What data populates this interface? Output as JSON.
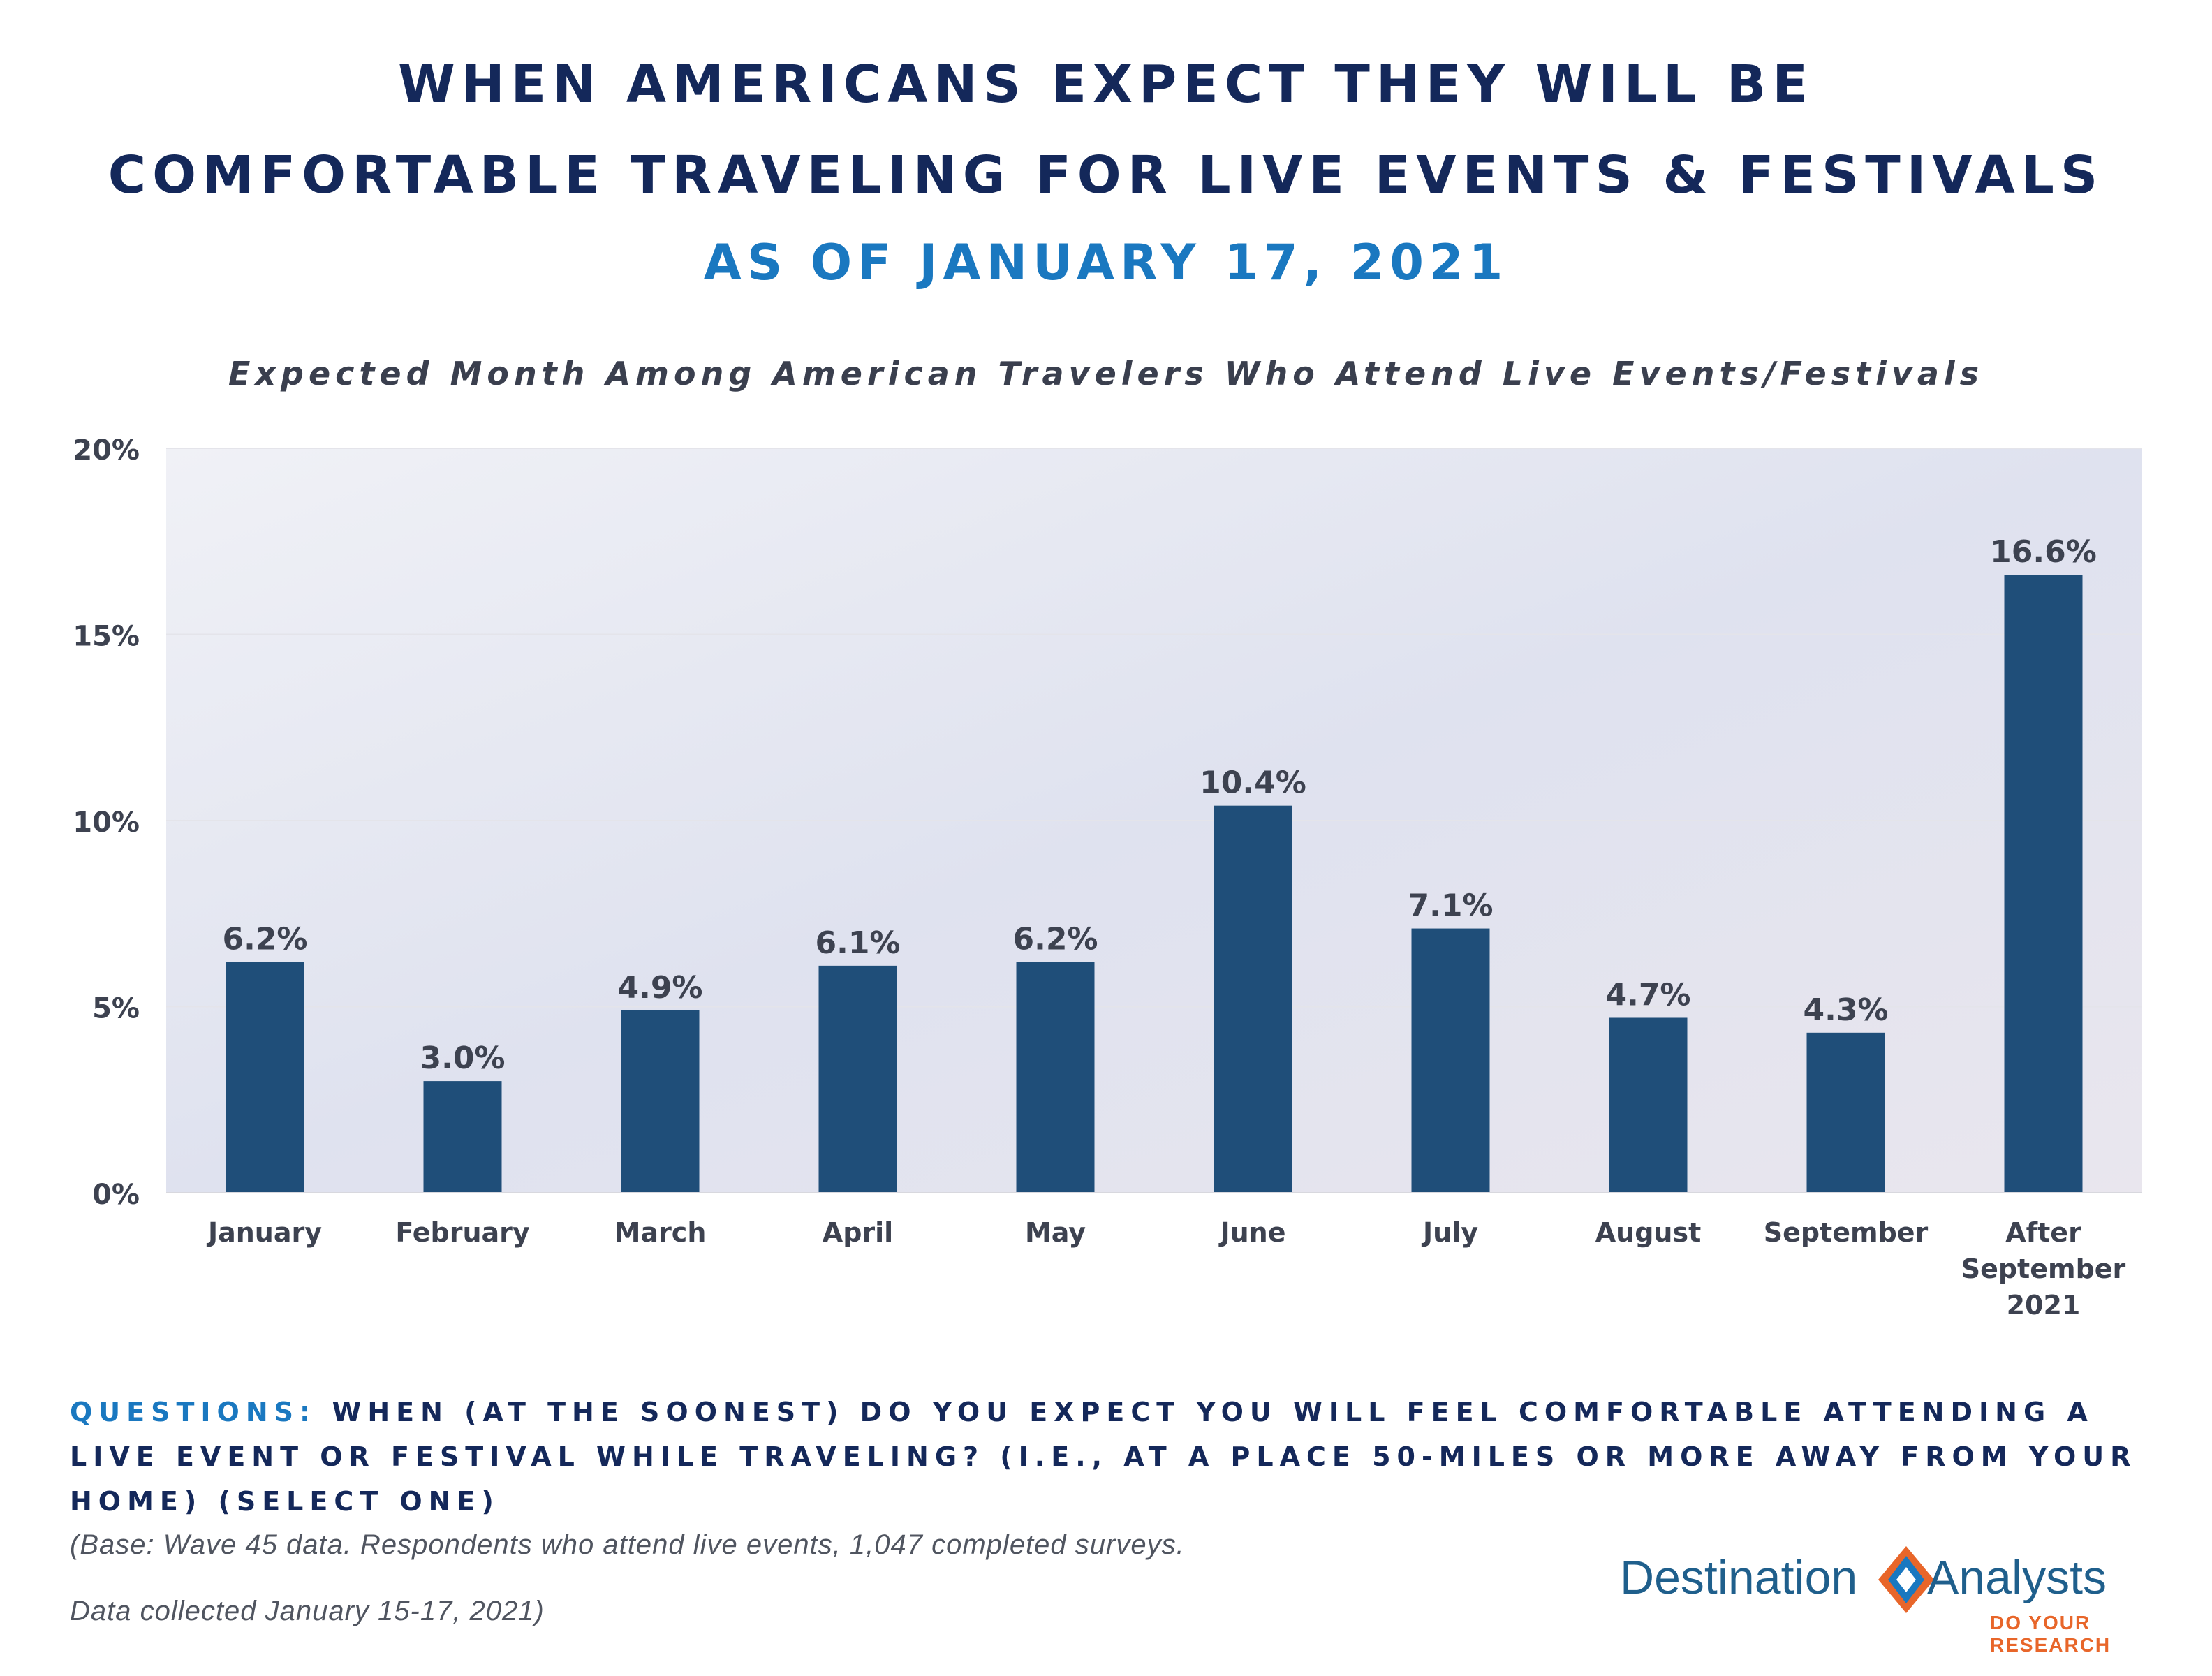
{
  "header": {
    "title_line1": "WHEN AMERICANS EXPECT THEY WILL BE",
    "title_line2": "COMFORTABLE TRAVELING FOR LIVE EVENTS & FESTIVALS",
    "subtitle": "AS OF JANUARY 17, 2021"
  },
  "chart_data": {
    "type": "bar",
    "title": "Expected Month Among American Travelers Who Attend Live Events/Festivals",
    "categories": [
      "January",
      "February",
      "March",
      "April",
      "May",
      "June",
      "July",
      "August",
      "September",
      "After September 2021"
    ],
    "category_lines": [
      [
        "January"
      ],
      [
        "February"
      ],
      [
        "March"
      ],
      [
        "April"
      ],
      [
        "May"
      ],
      [
        "June"
      ],
      [
        "July"
      ],
      [
        "August"
      ],
      [
        "September"
      ],
      [
        "After",
        "September",
        "2021"
      ]
    ],
    "values": [
      6.2,
      3.0,
      4.9,
      6.1,
      6.2,
      10.4,
      7.1,
      4.7,
      4.3,
      16.6
    ],
    "data_labels": [
      "6.2%",
      "3.0%",
      "4.9%",
      "6.1%",
      "6.2%",
      "10.4%",
      "7.1%",
      "4.7%",
      "4.3%",
      "16.6%"
    ],
    "ylim": [
      0,
      20
    ],
    "yticks": [
      0,
      5,
      10,
      15,
      20
    ],
    "ytick_labels": [
      "0%",
      "5%",
      "10%",
      "15%",
      "20%"
    ],
    "grid": true,
    "legend": "none",
    "bar_color": "#1f4e79"
  },
  "footer": {
    "question_prefix": "QUESTIONS:",
    "question_text": "WHEN (AT THE SOONEST) DO YOU EXPECT YOU WILL FEEL COMFORTABLE ATTENDING A LIVE EVENT OR FESTIVAL WHILE TRAVELING? (I.E., AT A PLACE 50-MILES OR MORE AWAY FROM YOUR HOME) (SELECT ONE)",
    "base_line1": "(Base: Wave 45 data. Respondents who attend live events, 1,047 completed surveys.",
    "base_line2": "Data collected January 15-17, 2021)"
  },
  "logo": {
    "left_word": "Destination",
    "right_word": "Analysts",
    "tagline": "DO YOUR RESEARCH"
  }
}
